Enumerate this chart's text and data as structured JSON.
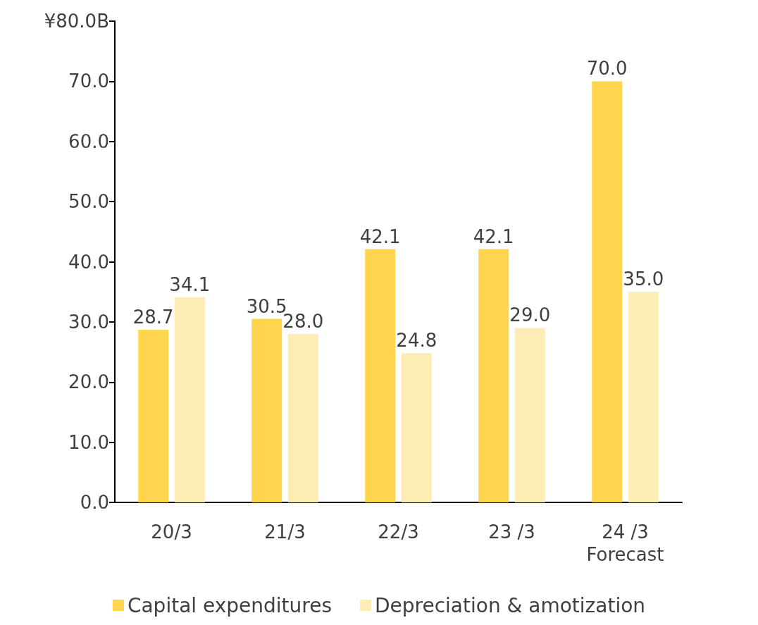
{
  "chart_data": {
    "type": "bar",
    "categories": [
      "20/3",
      "21/3",
      "22/3",
      "23 /3",
      "24 /3\nForecast"
    ],
    "series": [
      {
        "name": "Capital expenditures",
        "color": "#ffd54f",
        "values": [
          28.7,
          30.5,
          42.1,
          42.1,
          70.0
        ],
        "value_labels": [
          "28.7",
          "30.5",
          "42.1",
          "42.1",
          "70.0"
        ]
      },
      {
        "name": "Depreciation & amotization",
        "color": "#fdecb4",
        "values": [
          34.1,
          28.0,
          24.8,
          29.0,
          35.0
        ],
        "value_labels": [
          "34.1",
          "28.0",
          "24.8",
          "29.0",
          "35.0"
        ]
      }
    ],
    "ylim": [
      0,
      80
    ],
    "yticks": [
      {
        "value": 0,
        "label": "0.0"
      },
      {
        "value": 10,
        "label": "10.0"
      },
      {
        "value": 20,
        "label": "20.0"
      },
      {
        "value": 30,
        "label": "30.0"
      },
      {
        "value": 40,
        "label": "40.0"
      },
      {
        "value": 50,
        "label": "50.0"
      },
      {
        "value": 60,
        "label": "60.0"
      },
      {
        "value": 70,
        "label": "70.0"
      },
      {
        "value": 80,
        "label": "¥80.0B"
      }
    ],
    "legend": "bottom",
    "grid": false
  }
}
